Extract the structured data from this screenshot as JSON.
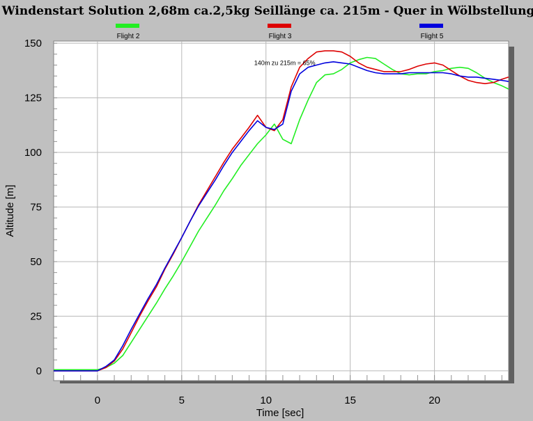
{
  "chart_data": {
    "type": "line",
    "title": "Windenstart Solution 2,68m ca.2,5kg Seillänge ca. 215m - Quer in Wölbstellung",
    "xlabel": "Time [sec]",
    "ylabel": "Altitude [m]",
    "xlim": [
      -2.6,
      24.4
    ],
    "ylim": [
      -4.5,
      151
    ],
    "xticks": [
      0,
      5,
      10,
      15,
      20
    ],
    "yticks": [
      0,
      25,
      50,
      75,
      100,
      125,
      150
    ],
    "grid": true,
    "legend_position": "top",
    "annotations": [
      {
        "text": "140m zu 215m = 65%",
        "x": 9.3,
        "y": 141
      }
    ],
    "series": [
      {
        "name": "Flight 2",
        "color": "#22ee22",
        "points": [
          [
            -2.6,
            0.5
          ],
          [
            0,
            0.5
          ],
          [
            0.5,
            1.5
          ],
          [
            1,
            3.5
          ],
          [
            1.5,
            7
          ],
          [
            2,
            13
          ],
          [
            2.5,
            19
          ],
          [
            3,
            25
          ],
          [
            3.5,
            31
          ],
          [
            4,
            37.5
          ],
          [
            4.5,
            43.5
          ],
          [
            5,
            50
          ],
          [
            5.5,
            57
          ],
          [
            6,
            64
          ],
          [
            6.5,
            70
          ],
          [
            7,
            76
          ],
          [
            7.5,
            82.5
          ],
          [
            8,
            88
          ],
          [
            8.5,
            94
          ],
          [
            9,
            99
          ],
          [
            9.5,
            104
          ],
          [
            10,
            108
          ],
          [
            10.5,
            113
          ],
          [
            11,
            106
          ],
          [
            11.5,
            104
          ],
          [
            12,
            115
          ],
          [
            12.5,
            124
          ],
          [
            13,
            132
          ],
          [
            13.5,
            135.5
          ],
          [
            14,
            136
          ],
          [
            14.5,
            138
          ],
          [
            15,
            141
          ],
          [
            15.5,
            142.5
          ],
          [
            16,
            143.5
          ],
          [
            16.5,
            143
          ],
          [
            17,
            140.5
          ],
          [
            17.5,
            138
          ],
          [
            18,
            136
          ],
          [
            18.5,
            135.5
          ],
          [
            19,
            136
          ],
          [
            19.5,
            136
          ],
          [
            20,
            137
          ],
          [
            20.5,
            137.5
          ],
          [
            21,
            138.5
          ],
          [
            21.5,
            139
          ],
          [
            22,
            138.5
          ],
          [
            22.5,
            136.5
          ],
          [
            23,
            134
          ],
          [
            23.5,
            132
          ],
          [
            24,
            130.5
          ],
          [
            24.4,
            129
          ]
        ]
      },
      {
        "name": "Flight 3",
        "color": "#dd0000",
        "points": [
          [
            -2.6,
            0
          ],
          [
            -1.5,
            0
          ],
          [
            0,
            0
          ],
          [
            0.5,
            1.5
          ],
          [
            1,
            4.5
          ],
          [
            1.5,
            10
          ],
          [
            2,
            17.5
          ],
          [
            2.5,
            25
          ],
          [
            3,
            32
          ],
          [
            3.5,
            38.5
          ],
          [
            4,
            46.5
          ],
          [
            4.5,
            53.5
          ],
          [
            5,
            61
          ],
          [
            5.5,
            68.5
          ],
          [
            6,
            76
          ],
          [
            6.5,
            82.5
          ],
          [
            7,
            89
          ],
          [
            7.5,
            95.5
          ],
          [
            8,
            101.5
          ],
          [
            8.5,
            106.5
          ],
          [
            9,
            111.5
          ],
          [
            9.5,
            117
          ],
          [
            10,
            111.5
          ],
          [
            10.5,
            110
          ],
          [
            11,
            115
          ],
          [
            11.5,
            130
          ],
          [
            12,
            139
          ],
          [
            12.5,
            143
          ],
          [
            13,
            146
          ],
          [
            13.5,
            146.5
          ],
          [
            14,
            146.5
          ],
          [
            14.5,
            146
          ],
          [
            15,
            144
          ],
          [
            15.5,
            141
          ],
          [
            16,
            139
          ],
          [
            16.5,
            138
          ],
          [
            17,
            137
          ],
          [
            17.5,
            137
          ],
          [
            18,
            137
          ],
          [
            18.5,
            138
          ],
          [
            19,
            139.5
          ],
          [
            19.5,
            140.5
          ],
          [
            20,
            141
          ],
          [
            20.5,
            140
          ],
          [
            21,
            137.5
          ],
          [
            21.5,
            135
          ],
          [
            22,
            133
          ],
          [
            22.5,
            132
          ],
          [
            23,
            131.5
          ],
          [
            23.5,
            132
          ],
          [
            24,
            133.5
          ],
          [
            24.4,
            134.5
          ]
        ]
      },
      {
        "name": "Flight 5",
        "color": "#0000dd",
        "points": [
          [
            -2.6,
            0
          ],
          [
            0,
            0
          ],
          [
            0.5,
            2
          ],
          [
            1,
            5
          ],
          [
            1.5,
            11.5
          ],
          [
            2,
            19
          ],
          [
            2.5,
            26
          ],
          [
            3,
            33
          ],
          [
            3.5,
            39.5
          ],
          [
            4,
            47
          ],
          [
            4.5,
            54
          ],
          [
            5,
            61
          ],
          [
            5.5,
            68.5
          ],
          [
            6,
            75.5
          ],
          [
            6.5,
            81.5
          ],
          [
            7,
            87.5
          ],
          [
            7.5,
            94
          ],
          [
            8,
            100
          ],
          [
            8.5,
            105
          ],
          [
            9,
            110
          ],
          [
            9.5,
            114.5
          ],
          [
            10,
            111.5
          ],
          [
            10.5,
            110.5
          ],
          [
            11,
            113
          ],
          [
            11.5,
            128
          ],
          [
            12,
            136
          ],
          [
            12.5,
            139
          ],
          [
            13,
            140
          ],
          [
            13.5,
            141
          ],
          [
            14,
            141.5
          ],
          [
            14.5,
            141
          ],
          [
            15,
            140.5
          ],
          [
            15.5,
            139
          ],
          [
            16,
            137.5
          ],
          [
            16.5,
            136.5
          ],
          [
            17,
            136
          ],
          [
            17.5,
            136
          ],
          [
            18,
            136
          ],
          [
            18.5,
            136.5
          ],
          [
            19,
            136.5
          ],
          [
            19.5,
            136.5
          ],
          [
            20,
            136.5
          ],
          [
            20.5,
            136.5
          ],
          [
            21,
            136
          ],
          [
            21.5,
            135
          ],
          [
            22,
            134.5
          ],
          [
            22.5,
            134.5
          ],
          [
            23,
            134
          ],
          [
            23.5,
            133.5
          ],
          [
            24,
            133
          ],
          [
            24.4,
            132.5
          ]
        ]
      }
    ]
  }
}
